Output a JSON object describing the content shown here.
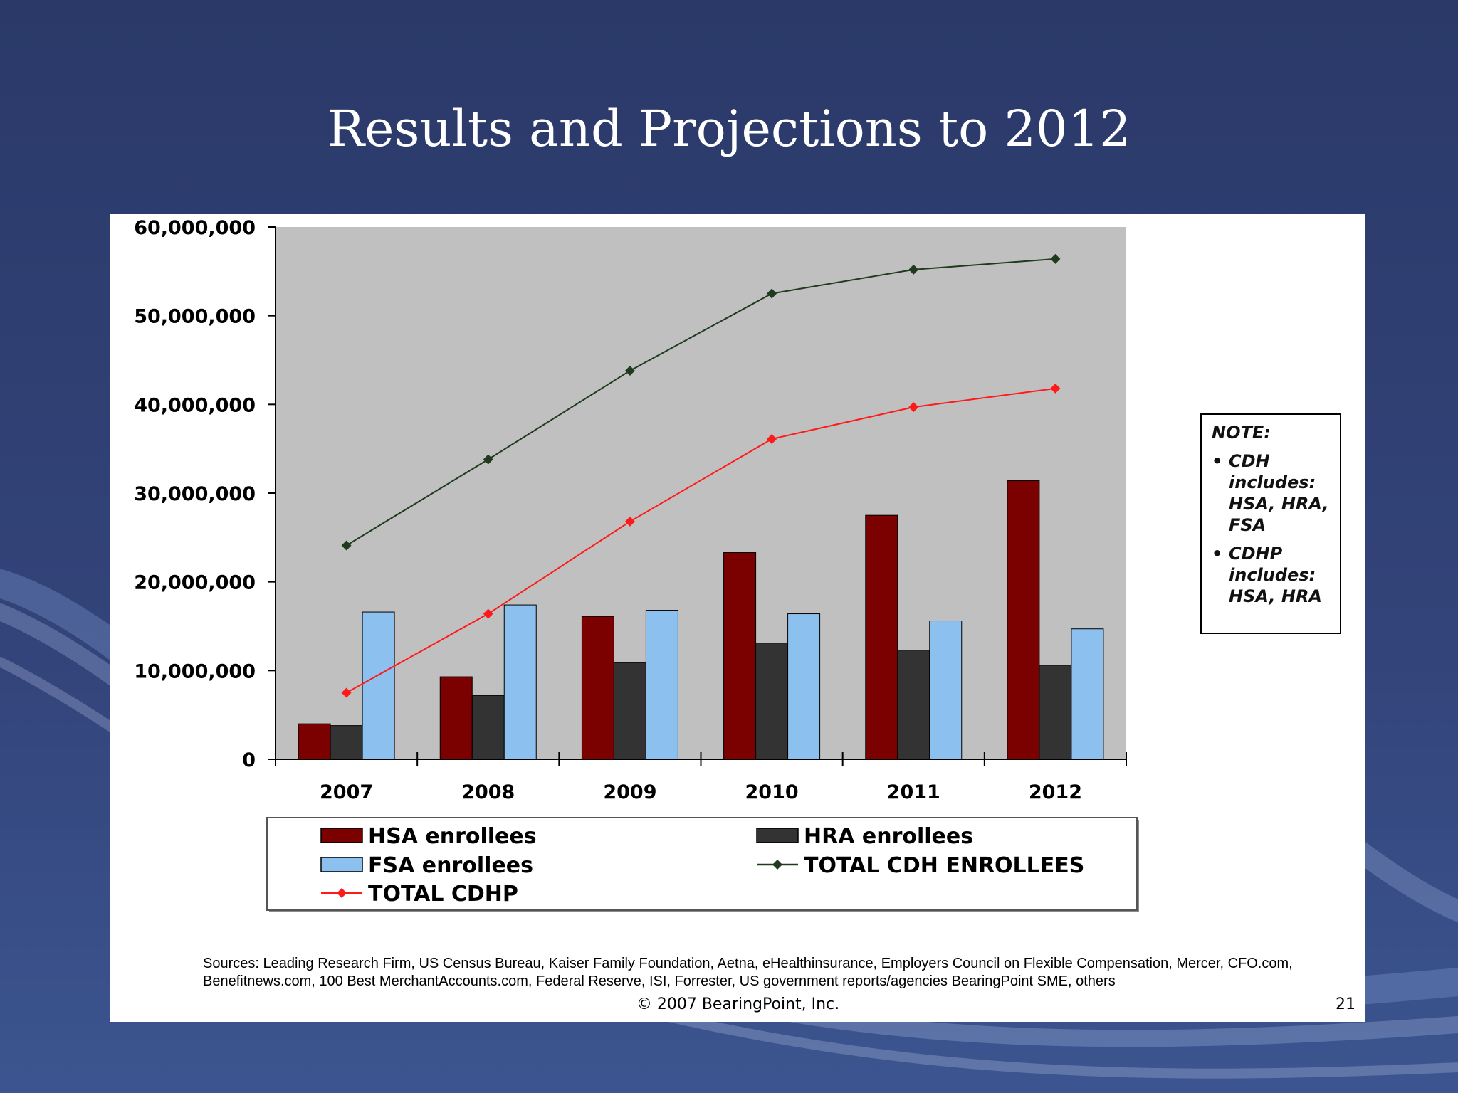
{
  "slide": {
    "title": "Results and Projections to 2012",
    "background_color": "#2f3f6e"
  },
  "chart_data": {
    "type": "bar",
    "categories": [
      "2007",
      "2008",
      "2009",
      "2010",
      "2011",
      "2012"
    ],
    "series": [
      {
        "name": "HSA enrollees",
        "type": "bar",
        "color": "#7b0000",
        "values": [
          4000000,
          9300000,
          16100000,
          23300000,
          27500000,
          31400000
        ]
      },
      {
        "name": "HRA enrollees",
        "type": "bar",
        "color": "#333333",
        "values": [
          3800000,
          7200000,
          10900000,
          13100000,
          12300000,
          10600000
        ]
      },
      {
        "name": "FSA enrollees",
        "type": "bar",
        "color": "#8cc1ef",
        "values": [
          16600000,
          17400000,
          16800000,
          16400000,
          15600000,
          14700000
        ]
      },
      {
        "name": "TOTAL CDH ENROLLEES",
        "type": "line",
        "color": "#1f3a1f",
        "values": [
          24100000,
          33800000,
          43800000,
          52500000,
          55200000,
          56400000
        ]
      },
      {
        "name": "TOTAL CDHP",
        "type": "line",
        "color": "#ff1a1a",
        "values": [
          7500000,
          16400000,
          26800000,
          36100000,
          39700000,
          41800000
        ]
      }
    ],
    "ylim": [
      0,
      60000000
    ],
    "yticks": [
      0,
      10000000,
      20000000,
      30000000,
      40000000,
      50000000,
      60000000
    ],
    "ytick_labels": [
      "0",
      "10,000,000",
      "20,000,000",
      "30,000,000",
      "40,000,000",
      "50,000,000",
      "60,000,000"
    ],
    "title": "",
    "xlabel": "",
    "ylabel": "",
    "grid": false,
    "plot_background": "#c0c0c0",
    "legend": {
      "placement": "bottom",
      "entries": [
        {
          "label": "HSA enrollees",
          "kind": "bar",
          "color": "#7b0000"
        },
        {
          "label": "HRA enrollees",
          "kind": "bar",
          "color": "#333333"
        },
        {
          "label": "FSA enrollees",
          "kind": "bar",
          "color": "#8cc1ef"
        },
        {
          "label": "TOTAL CDH ENROLLEES",
          "kind": "line",
          "color": "#1f3a1f"
        },
        {
          "label": "TOTAL CDHP",
          "kind": "line",
          "color": "#ff1a1a"
        }
      ]
    }
  },
  "note": {
    "title": "NOTE:",
    "items": [
      {
        "head": "CDH",
        "sub": "includes: HSA, HRA, FSA"
      },
      {
        "head": "CDHP",
        "sub": "includes: HSA, HRA"
      }
    ]
  },
  "footer": {
    "sources": "Sources: Leading Research Firm, US Census Bureau, Kaiser Family Foundation,  Aetna, eHealthinsurance, Employers Council on Flexible Compensation, Mercer, CFO.com, Benefitnews.com, 100 Best MerchantAccounts.com, Federal Reserve, ISI, Forrester, US government reports/agencies BearingPoint  SME, others",
    "copyright": "© 2007 BearingPoint, Inc.",
    "page_number": "21"
  }
}
